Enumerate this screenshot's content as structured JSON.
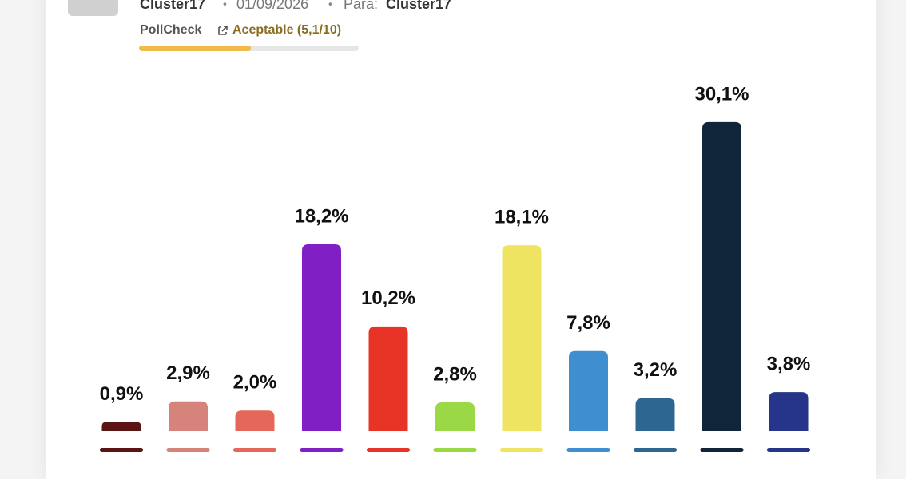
{
  "header": {
    "pollster": "Cluster17",
    "date": "01/09/2026",
    "for_label": "Para:",
    "for": "Cluster17",
    "source": "PollCheck",
    "rating": {
      "value": 5.1,
      "label": "Aceptable (5,1/10)"
    },
    "rating_max": 10
  },
  "chart_data": {
    "type": "bar",
    "values": [
      0.9,
      2.9,
      2.0,
      18.2,
      10.2,
      2.8,
      18.1,
      7.8,
      3.2,
      30.1,
      3.8
    ],
    "value_labels": [
      "0,9%",
      "2,9%",
      "2,0%",
      "18,2%",
      "10,2%",
      "2,8%",
      "18,1%",
      "7,8%",
      "3,2%",
      "30,1%",
      "3,8%"
    ],
    "colors": [
      "#5a1414",
      "#d6837c",
      "#e5675a",
      "#8020c4",
      "#e83427",
      "#9ad845",
      "#efe462",
      "#3f8fd0",
      "#2e6692",
      "#10243a",
      "#263589"
    ]
  }
}
